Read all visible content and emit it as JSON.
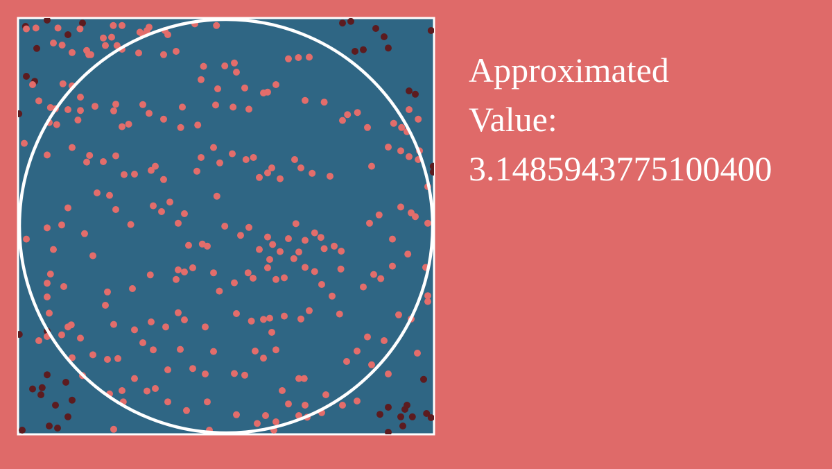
{
  "readout": {
    "label_line1": "Approximated",
    "label_line2": "Value:",
    "value": "3.1485943775100400"
  },
  "colors": {
    "background": "#df6a69",
    "square_fill": "#2f6684",
    "square_border": "#ffffff",
    "circle_stroke": "#ffffff",
    "point_inside": "#e36d6b",
    "point_outside": "#5c1b1f"
  },
  "simulation": {
    "estimate": 3.14859437751004,
    "points_inside": [
      [
        0.02,
        0.026
      ],
      [
        0.043,
        0.024
      ],
      [
        0.096,
        0.024
      ],
      [
        0.149,
        0.026
      ],
      [
        0.229,
        0.018
      ],
      [
        0.25,
        0.018
      ],
      [
        0.315,
        0.022
      ],
      [
        0.353,
        0.03
      ],
      [
        0.425,
        0.014
      ],
      [
        0.477,
        0.018
      ],
      [
        0.205,
        0.048
      ],
      [
        0.225,
        0.046
      ],
      [
        0.31,
        0.03
      ],
      [
        0.293,
        0.034
      ],
      [
        0.3,
        0.04
      ],
      [
        0.36,
        0.04
      ],
      [
        0.21,
        0.066
      ],
      [
        0.165,
        0.078
      ],
      [
        0.238,
        0.066
      ],
      [
        0.17,
        0.088
      ],
      [
        0.085,
        0.06
      ],
      [
        0.106,
        0.065
      ],
      [
        0.13,
        0.083
      ],
      [
        0.175,
        0.088
      ],
      [
        0.108,
        0.158
      ],
      [
        0.25,
        0.075
      ],
      [
        0.29,
        0.084
      ],
      [
        0.35,
        0.088
      ],
      [
        0.38,
        0.08
      ],
      [
        0.446,
        0.116
      ],
      [
        0.497,
        0.115
      ],
      [
        0.52,
        0.108
      ],
      [
        0.525,
        0.13
      ],
      [
        0.44,
        0.148
      ],
      [
        0.48,
        0.17
      ],
      [
        0.545,
        0.168
      ],
      [
        0.59,
        0.18
      ],
      [
        0.65,
        0.098
      ],
      [
        0.674,
        0.095
      ],
      [
        0.7,
        0.094
      ],
      [
        0.035,
        0.16
      ],
      [
        0.13,
        0.163
      ],
      [
        0.15,
        0.19
      ],
      [
        0.05,
        0.199
      ],
      [
        0.078,
        0.215
      ],
      [
        0.09,
        0.218
      ],
      [
        0.12,
        0.22
      ],
      [
        0.15,
        0.222
      ],
      [
        0.075,
        0.251
      ],
      [
        0.093,
        0.256
      ],
      [
        0.144,
        0.245
      ],
      [
        0.185,
        0.212
      ],
      [
        0.25,
        0.261
      ],
      [
        0.266,
        0.255
      ],
      [
        0.235,
        0.207
      ],
      [
        0.23,
        0.223
      ],
      [
        0.3,
        0.208
      ],
      [
        0.315,
        0.229
      ],
      [
        0.35,
        0.243
      ],
      [
        0.395,
        0.214
      ],
      [
        0.391,
        0.263
      ],
      [
        0.432,
        0.257
      ],
      [
        0.475,
        0.209
      ],
      [
        0.517,
        0.214
      ],
      [
        0.555,
        0.219
      ],
      [
        0.6,
        0.178
      ],
      [
        0.62,
        0.16
      ],
      [
        0.69,
        0.198
      ],
      [
        0.736,
        0.202
      ],
      [
        0.78,
        0.246
      ],
      [
        0.792,
        0.232
      ],
      [
        0.816,
        0.227
      ],
      [
        0.84,
        0.263
      ],
      [
        0.903,
        0.253
      ],
      [
        0.922,
        0.263
      ],
      [
        0.935,
        0.273
      ],
      [
        0.94,
        0.22
      ],
      [
        0.962,
        0.243
      ],
      [
        0.015,
        0.301
      ],
      [
        0.07,
        0.329
      ],
      [
        0.13,
        0.311
      ],
      [
        0.165,
        0.346
      ],
      [
        0.172,
        0.33
      ],
      [
        0.205,
        0.345
      ],
      [
        0.235,
        0.331
      ],
      [
        0.255,
        0.376
      ],
      [
        0.28,
        0.375
      ],
      [
        0.32,
        0.366
      ],
      [
        0.33,
        0.356
      ],
      [
        0.35,
        0.388
      ],
      [
        0.43,
        0.368
      ],
      [
        0.44,
        0.335
      ],
      [
        0.47,
        0.311
      ],
      [
        0.485,
        0.348
      ],
      [
        0.515,
        0.326
      ],
      [
        0.548,
        0.34
      ],
      [
        0.566,
        0.335
      ],
      [
        0.58,
        0.383
      ],
      [
        0.6,
        0.372
      ],
      [
        0.61,
        0.36
      ],
      [
        0.63,
        0.386
      ],
      [
        0.665,
        0.34
      ],
      [
        0.68,
        0.36
      ],
      [
        0.707,
        0.373
      ],
      [
        0.75,
        0.38
      ],
      [
        0.85,
        0.356
      ],
      [
        0.89,
        0.31
      ],
      [
        0.92,
        0.319
      ],
      [
        0.94,
        0.333
      ],
      [
        0.962,
        0.34
      ],
      [
        0.965,
        0.319
      ],
      [
        0.985,
        0.405
      ],
      [
        0.02,
        0.531
      ],
      [
        0.07,
        0.504
      ],
      [
        0.105,
        0.497
      ],
      [
        0.12,
        0.456
      ],
      [
        0.085,
        0.556
      ],
      [
        0.16,
        0.518
      ],
      [
        0.19,
        0.42
      ],
      [
        0.22,
        0.426
      ],
      [
        0.235,
        0.46
      ],
      [
        0.271,
        0.496
      ],
      [
        0.325,
        0.451
      ],
      [
        0.365,
        0.442
      ],
      [
        0.345,
        0.465
      ],
      [
        0.385,
        0.493
      ],
      [
        0.4,
        0.47
      ],
      [
        0.41,
        0.546
      ],
      [
        0.443,
        0.543
      ],
      [
        0.455,
        0.548
      ],
      [
        0.478,
        0.428
      ],
      [
        0.497,
        0.5
      ],
      [
        0.535,
        0.522
      ],
      [
        0.555,
        0.503
      ],
      [
        0.58,
        0.556
      ],
      [
        0.6,
        0.526
      ],
      [
        0.612,
        0.544
      ],
      [
        0.63,
        0.561
      ],
      [
        0.65,
        0.53
      ],
      [
        0.668,
        0.494
      ],
      [
        0.69,
        0.534
      ],
      [
        0.713,
        0.516
      ],
      [
        0.728,
        0.527
      ],
      [
        0.736,
        0.554
      ],
      [
        0.76,
        0.548
      ],
      [
        0.777,
        0.56
      ],
      [
        0.845,
        0.493
      ],
      [
        0.868,
        0.473
      ],
      [
        0.9,
        0.531
      ],
      [
        0.92,
        0.454
      ],
      [
        0.937,
        0.567
      ],
      [
        0.945,
        0.468
      ],
      [
        0.955,
        0.477
      ],
      [
        0.985,
        0.493
      ],
      [
        0.078,
        0.615
      ],
      [
        0.07,
        0.637
      ],
      [
        0.07,
        0.67
      ],
      [
        0.11,
        0.645
      ],
      [
        0.18,
        0.571
      ],
      [
        0.215,
        0.658
      ],
      [
        0.275,
        0.65
      ],
      [
        0.318,
        0.617
      ],
      [
        0.38,
        0.628
      ],
      [
        0.385,
        0.605
      ],
      [
        0.4,
        0.61
      ],
      [
        0.42,
        0.6
      ],
      [
        0.47,
        0.612
      ],
      [
        0.484,
        0.656
      ],
      [
        0.52,
        0.636
      ],
      [
        0.553,
        0.612
      ],
      [
        0.565,
        0.625
      ],
      [
        0.6,
        0.6
      ],
      [
        0.605,
        0.58
      ],
      [
        0.62,
        0.628
      ],
      [
        0.64,
        0.624
      ],
      [
        0.663,
        0.578
      ],
      [
        0.675,
        0.562
      ],
      [
        0.69,
        0.599
      ],
      [
        0.713,
        0.609
      ],
      [
        0.73,
        0.64
      ],
      [
        0.755,
        0.668
      ],
      [
        0.776,
        0.603
      ],
      [
        0.83,
        0.646
      ],
      [
        0.855,
        0.616
      ],
      [
        0.872,
        0.626
      ],
      [
        0.9,
        0.596
      ],
      [
        0.98,
        0.599
      ],
      [
        0.985,
        0.667
      ],
      [
        0.075,
        0.709
      ],
      [
        0.128,
        0.737
      ],
      [
        0.105,
        0.761
      ],
      [
        0.12,
        0.742
      ],
      [
        0.15,
        0.769
      ],
      [
        0.21,
        0.69
      ],
      [
        0.23,
        0.736
      ],
      [
        0.28,
        0.749
      ],
      [
        0.32,
        0.73
      ],
      [
        0.355,
        0.742
      ],
      [
        0.385,
        0.708
      ],
      [
        0.4,
        0.725
      ],
      [
        0.45,
        0.742
      ],
      [
        0.525,
        0.71
      ],
      [
        0.561,
        0.728
      ],
      [
        0.59,
        0.724
      ],
      [
        0.605,
        0.721
      ],
      [
        0.61,
        0.755
      ],
      [
        0.64,
        0.716
      ],
      [
        0.68,
        0.723
      ],
      [
        0.7,
        0.703
      ],
      [
        0.773,
        0.711
      ],
      [
        0.84,
        0.766
      ],
      [
        0.915,
        0.713
      ],
      [
        0.945,
        0.723
      ],
      [
        0.985,
        0.681
      ],
      [
        0.05,
        0.775
      ],
      [
        0.07,
        0.765
      ],
      [
        0.13,
        0.816
      ],
      [
        0.155,
        0.859
      ],
      [
        0.18,
        0.809
      ],
      [
        0.215,
        0.82
      ],
      [
        0.24,
        0.818
      ],
      [
        0.25,
        0.895
      ],
      [
        0.28,
        0.866
      ],
      [
        0.3,
        0.78
      ],
      [
        0.325,
        0.797
      ],
      [
        0.36,
        0.845
      ],
      [
        0.39,
        0.796
      ],
      [
        0.42,
        0.842
      ],
      [
        0.45,
        0.855
      ],
      [
        0.47,
        0.801
      ],
      [
        0.52,
        0.854
      ],
      [
        0.545,
        0.858
      ],
      [
        0.57,
        0.8
      ],
      [
        0.59,
        0.817
      ],
      [
        0.62,
        0.797
      ],
      [
        0.635,
        0.895
      ],
      [
        0.675,
        0.866
      ],
      [
        0.688,
        0.866
      ],
      [
        0.74,
        0.905
      ],
      [
        0.79,
        0.825
      ],
      [
        0.815,
        0.8
      ],
      [
        0.85,
        0.833
      ],
      [
        0.88,
        0.775
      ],
      [
        0.96,
        0.805
      ],
      [
        0.89,
        0.855
      ],
      [
        0.22,
        0.903
      ],
      [
        0.253,
        0.922
      ],
      [
        0.31,
        0.896
      ],
      [
        0.33,
        0.89
      ],
      [
        0.36,
        0.922
      ],
      [
        0.405,
        0.943
      ],
      [
        0.455,
        0.922
      ],
      [
        0.525,
        0.953
      ],
      [
        0.575,
        0.974
      ],
      [
        0.595,
        0.955
      ],
      [
        0.62,
        0.97
      ],
      [
        0.73,
        0.948
      ],
      [
        0.78,
        0.93
      ],
      [
        0.69,
        0.93
      ],
      [
        0.65,
        0.927
      ],
      [
        0.815,
        0.92
      ],
      [
        0.695,
        0.959
      ],
      [
        0.46,
        0.99
      ],
      [
        0.615,
        0.99
      ],
      [
        0.675,
        0.955
      ],
      [
        0.23,
        0.988
      ]
    ],
    "points_outside": [
      [
        0.018,
        0.02
      ],
      [
        0.07,
        0.005
      ],
      [
        0.12,
        0.04
      ],
      [
        0.155,
        0.012
      ],
      [
        0.045,
        0.073
      ],
      [
        0.02,
        0.14
      ],
      [
        0.04,
        0.152
      ],
      [
        0.002,
        0.23
      ],
      [
        0.78,
        0.012
      ],
      [
        0.8,
        0.008
      ],
      [
        0.86,
        0.025
      ],
      [
        0.88,
        0.045
      ],
      [
        0.89,
        0.072
      ],
      [
        0.81,
        0.08
      ],
      [
        0.83,
        0.076
      ],
      [
        0.94,
        0.175
      ],
      [
        0.955,
        0.183
      ],
      [
        0.998,
        0.356
      ],
      [
        0.998,
        0.37
      ],
      [
        0.003,
        0.76
      ],
      [
        0.07,
        0.752
      ],
      [
        0.07,
        0.857
      ],
      [
        0.058,
        0.888
      ],
      [
        0.055,
        0.905
      ],
      [
        0.035,
        0.891
      ],
      [
        0.115,
        0.875
      ],
      [
        0.13,
        0.918
      ],
      [
        0.09,
        0.93
      ],
      [
        0.12,
        0.958
      ],
      [
        0.075,
        0.98
      ],
      [
        0.095,
        0.985
      ],
      [
        0.01,
        0.99
      ],
      [
        0.92,
        0.958
      ],
      [
        0.93,
        0.94
      ],
      [
        0.935,
        0.93
      ],
      [
        0.925,
        0.98
      ],
      [
        0.89,
        0.935
      ],
      [
        0.87,
        0.952
      ],
      [
        0.982,
        0.95
      ],
      [
        0.993,
        0.96
      ],
      [
        0.975,
        0.868
      ],
      [
        0.948,
        0.958
      ],
      [
        0.993,
        0.03
      ],
      [
        0.89,
        0.995
      ]
    ]
  }
}
